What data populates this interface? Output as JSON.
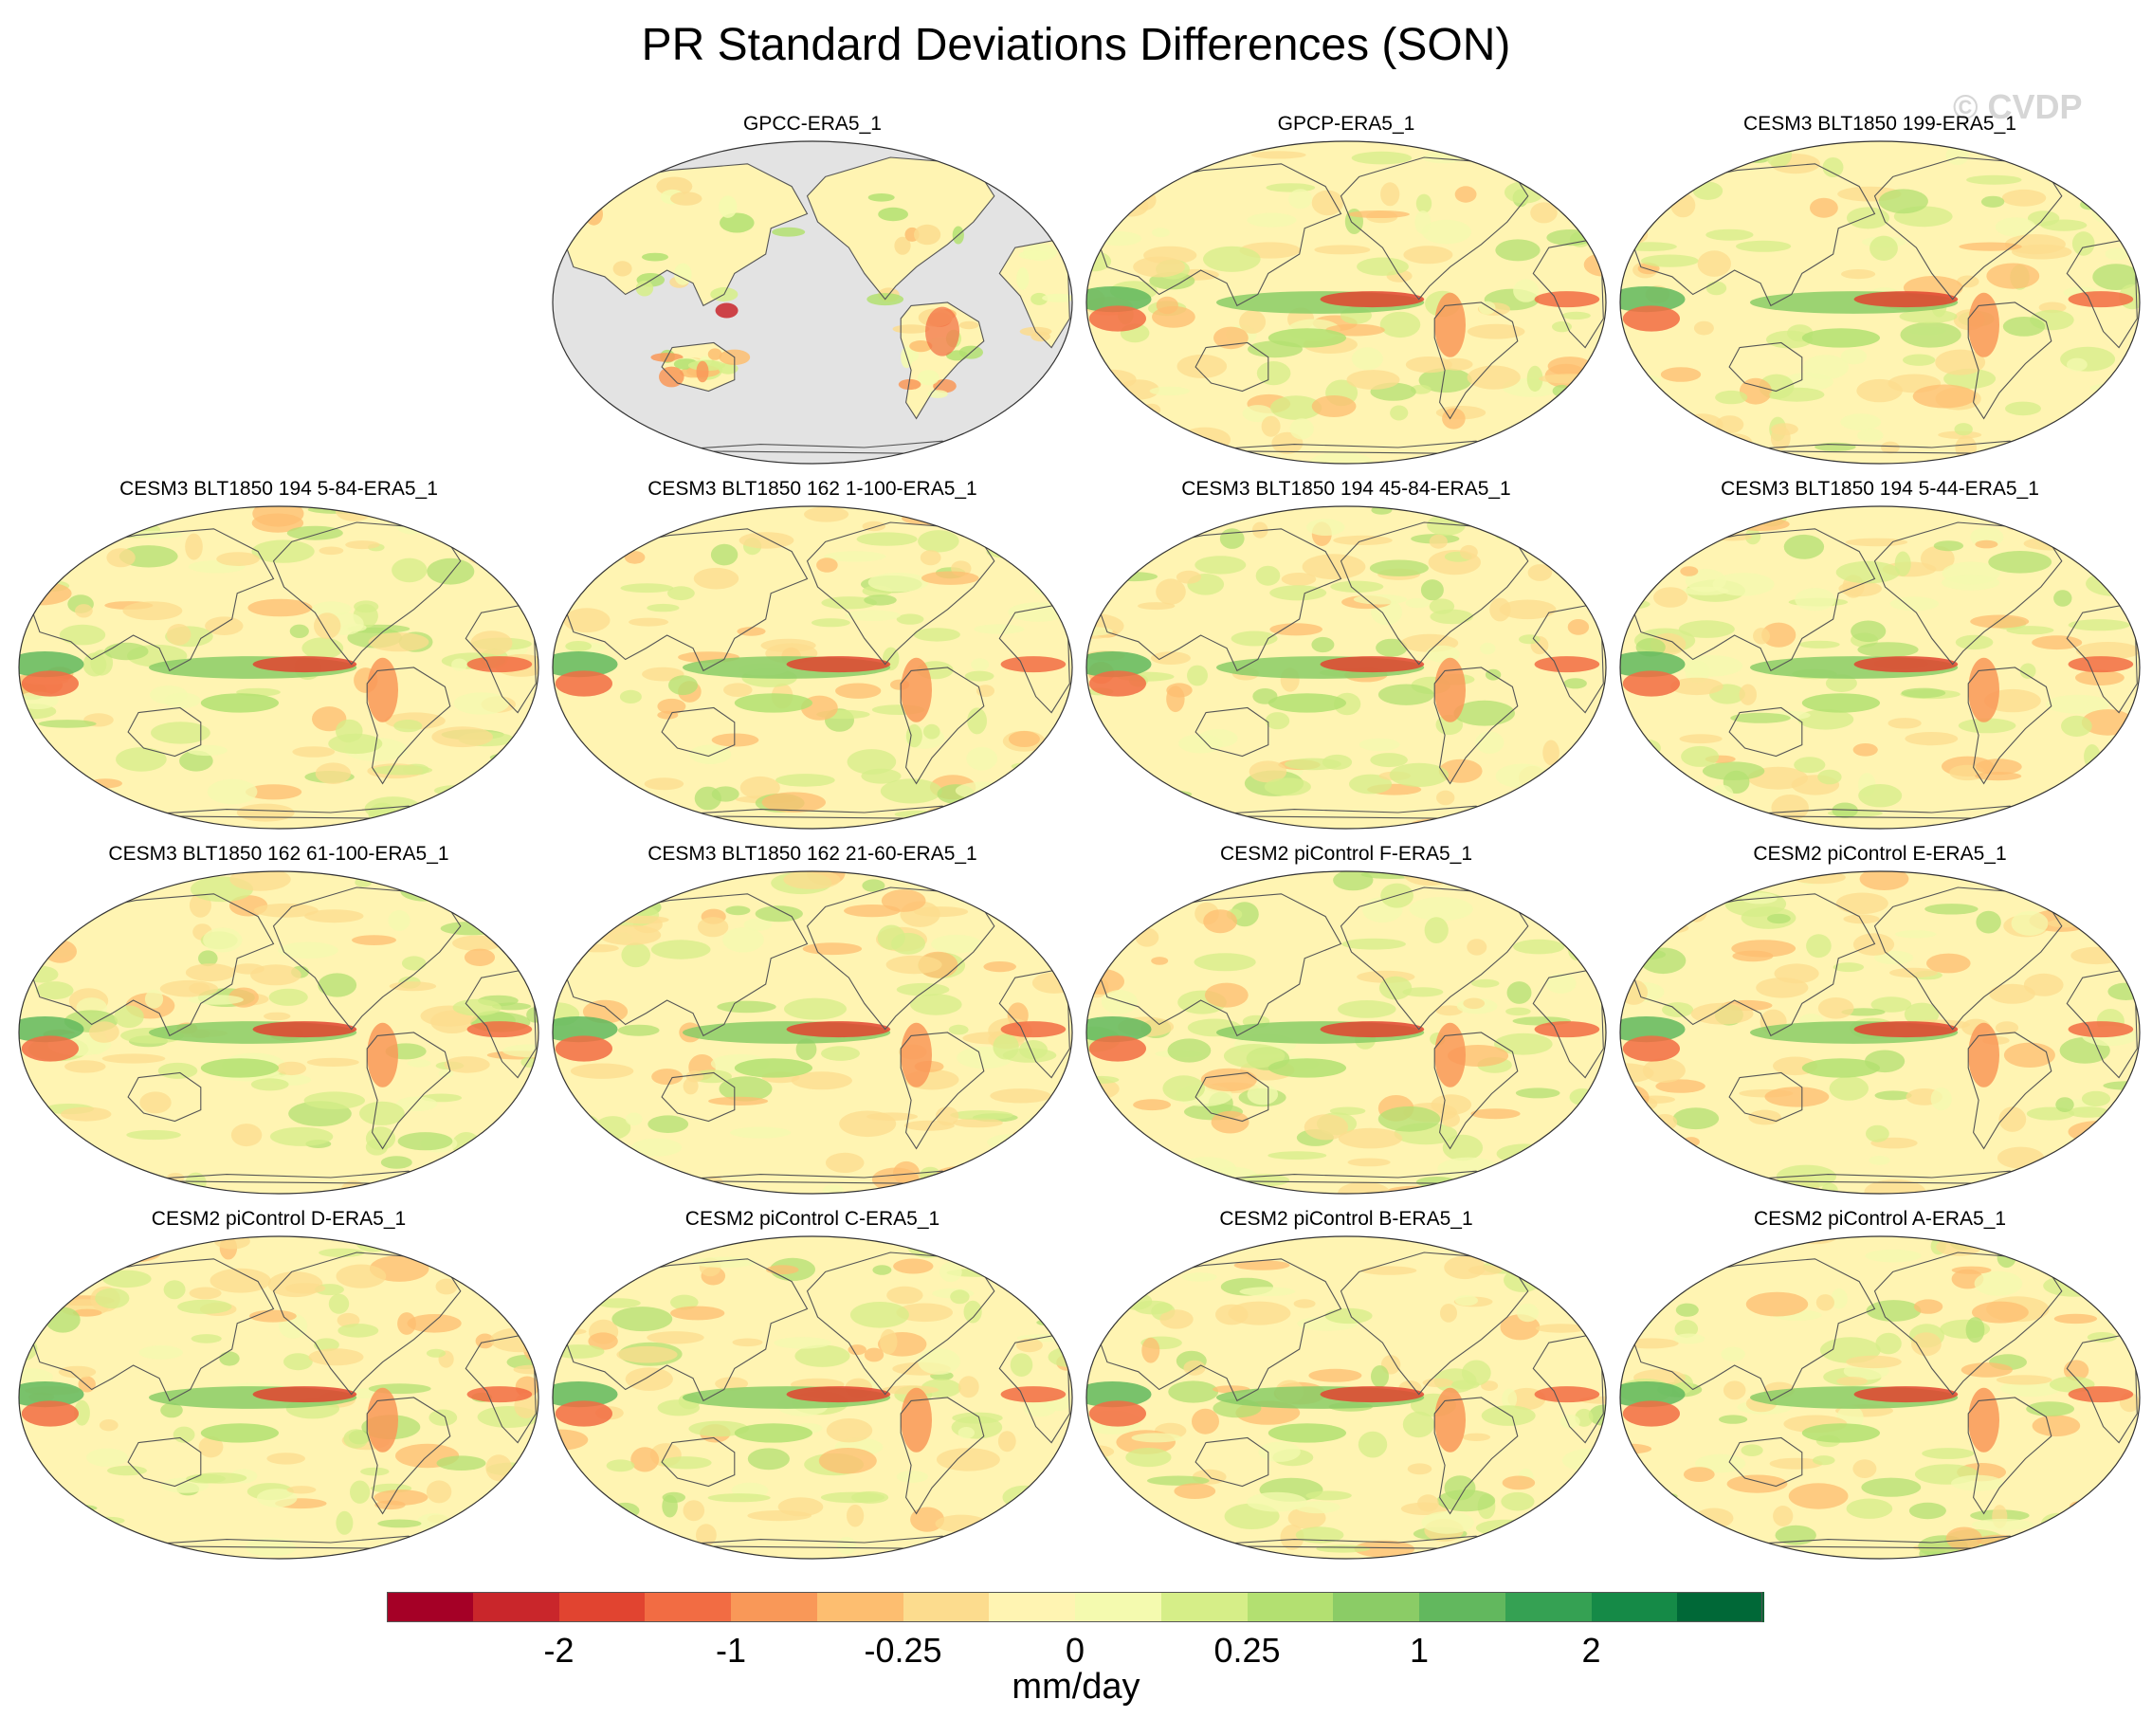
{
  "title": "PR Standard Deviations Differences (SON)",
  "watermark": "© CVDP",
  "colorbar": {
    "units": "mm/day",
    "colors": [
      "#a50026",
      "#c9262b",
      "#e14430",
      "#f26c43",
      "#f99858",
      "#fdbe70",
      "#fcdc8e",
      "#fff4b2",
      "#f4faaf",
      "#d6ee88",
      "#b3e071",
      "#8bcc66",
      "#62b85e",
      "#35a153",
      "#158a47",
      "#006837"
    ],
    "labels": [
      {
        "text": "-2",
        "boundary": 2
      },
      {
        "text": "-1",
        "boundary": 4
      },
      {
        "text": "-0.25",
        "boundary": 6
      },
      {
        "text": "0",
        "boundary": 8
      },
      {
        "text": "0.25",
        "boundary": 10
      },
      {
        "text": "1",
        "boundary": 12
      },
      {
        "text": "2",
        "boundary": 14
      }
    ]
  },
  "panels": [
    {
      "title": "GPCC-ERA5_1",
      "land_only": true
    },
    {
      "title": "GPCP-ERA5_1",
      "land_only": false
    },
    {
      "title": "CESM3 BLT1850 199-ERA5_1",
      "land_only": false
    },
    {
      "title": "CESM3 BLT1850 194 5-84-ERA5_1",
      "land_only": false
    },
    {
      "title": "CESM3 BLT1850 162 1-100-ERA5_1",
      "land_only": false
    },
    {
      "title": "CESM3 BLT1850 194 45-84-ERA5_1",
      "land_only": false
    },
    {
      "title": "CESM3 BLT1850 194 5-44-ERA5_1",
      "land_only": false
    },
    {
      "title": "CESM3 BLT1850 162 61-100-ERA5_1",
      "land_only": false
    },
    {
      "title": "CESM3 BLT1850 162 21-60-ERA5_1",
      "land_only": false
    },
    {
      "title": "CESM2 piControl F-ERA5_1",
      "land_only": false
    },
    {
      "title": "CESM2 piControl E-ERA5_1",
      "land_only": false
    },
    {
      "title": "CESM2 piControl D-ERA5_1",
      "land_only": false
    },
    {
      "title": "CESM2 piControl C-ERA5_1",
      "land_only": false
    },
    {
      "title": "CESM2 piControl B-ERA5_1",
      "land_only": false
    },
    {
      "title": "CESM2 piControl A-ERA5_1",
      "land_only": false
    }
  ]
}
